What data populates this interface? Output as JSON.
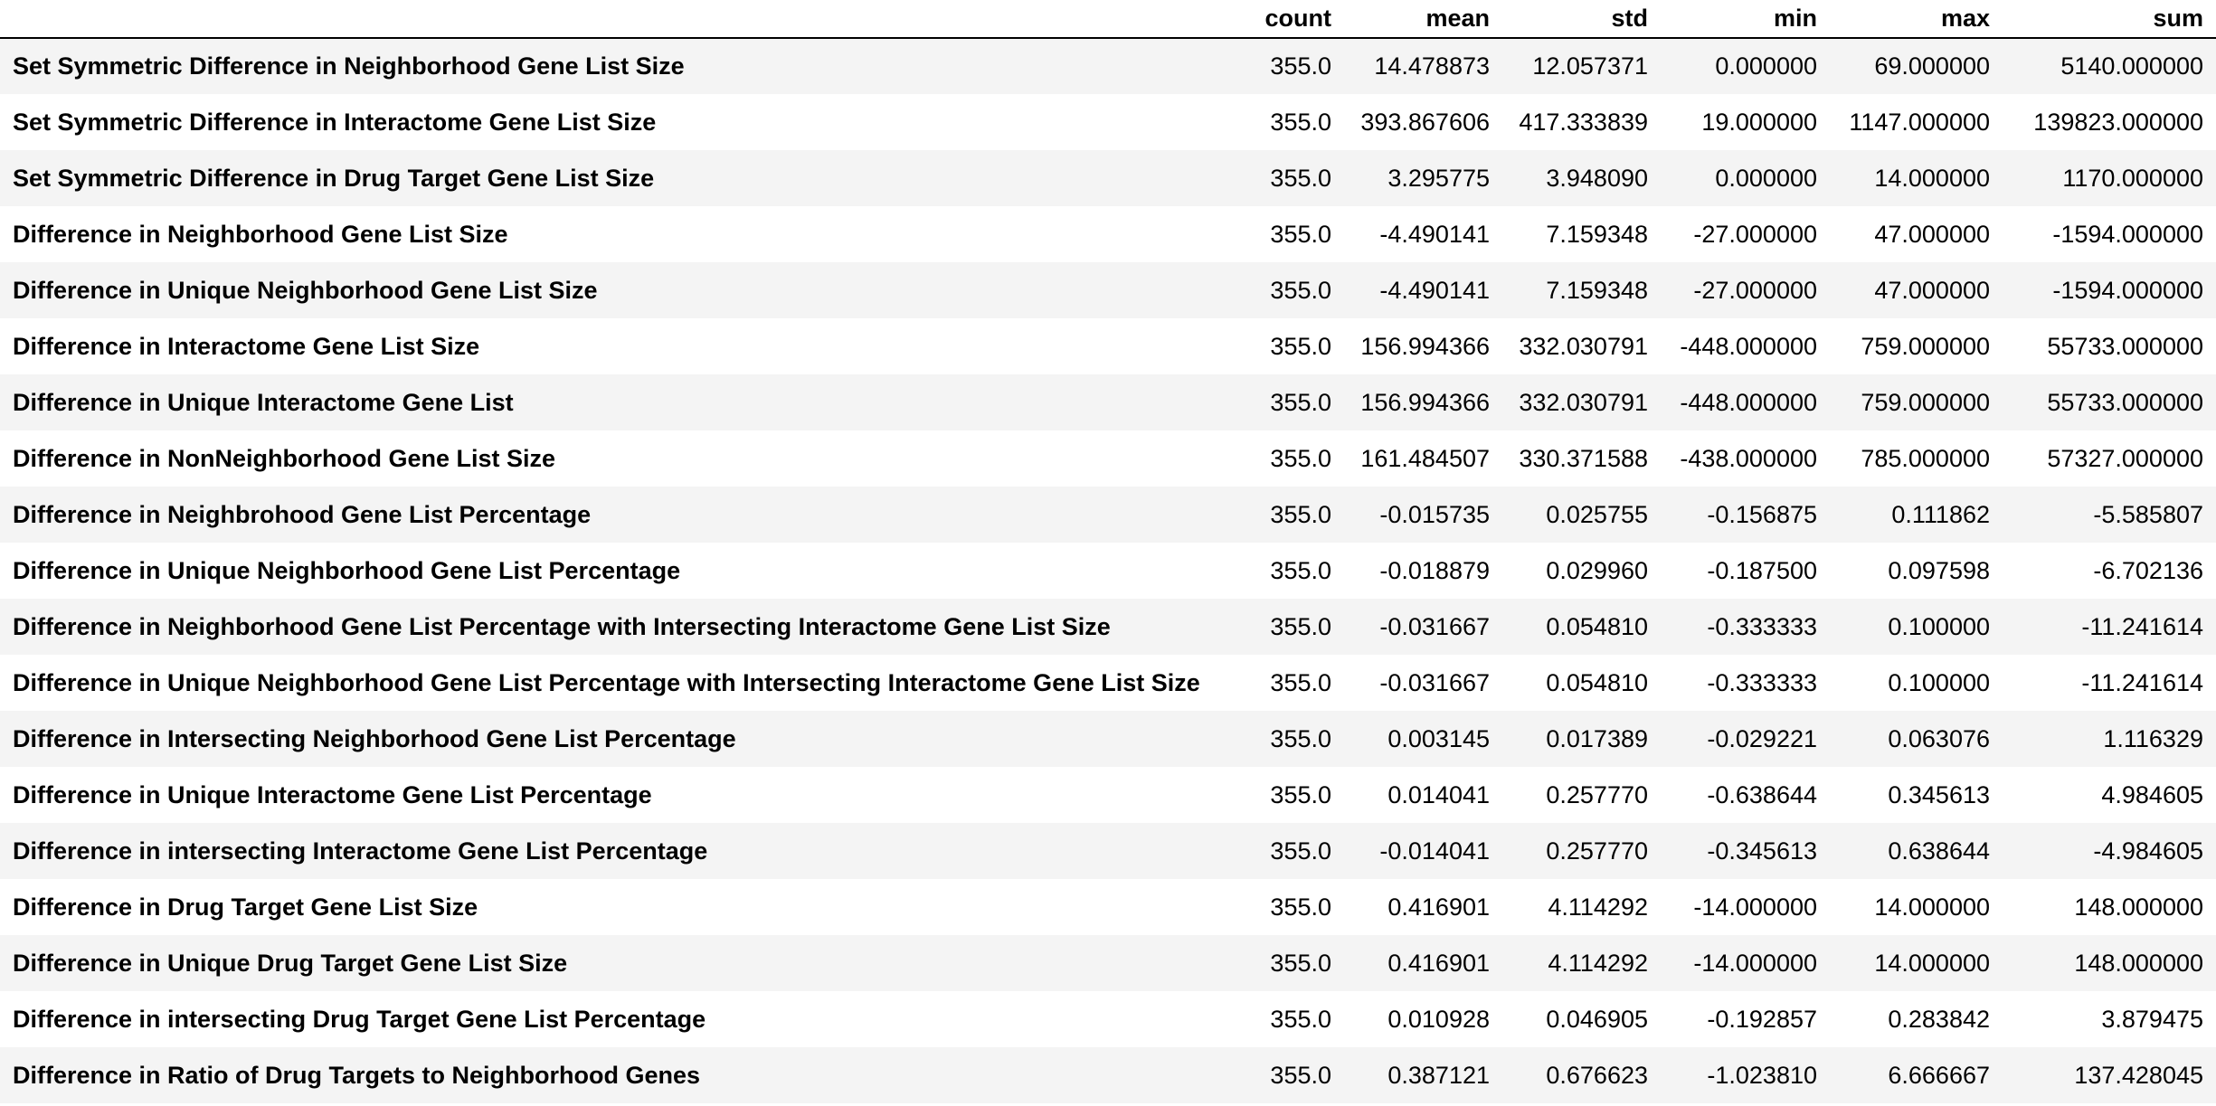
{
  "table": {
    "columns": [
      "",
      "count",
      "mean",
      "std",
      "min",
      "max",
      "sum"
    ],
    "rows": [
      {
        "label": "Set Symmetric Difference in Neighborhood Gene List Size",
        "values": [
          "355.0",
          "14.478873",
          "12.057371",
          "0.000000",
          "69.000000",
          "5140.000000"
        ]
      },
      {
        "label": "Set Symmetric Difference in Interactome Gene List Size",
        "values": [
          "355.0",
          "393.867606",
          "417.333839",
          "19.000000",
          "1147.000000",
          "139823.000000"
        ]
      },
      {
        "label": "Set Symmetric Difference in Drug Target Gene List Size",
        "values": [
          "355.0",
          "3.295775",
          "3.948090",
          "0.000000",
          "14.000000",
          "1170.000000"
        ]
      },
      {
        "label": "Difference in Neighborhood Gene List Size",
        "values": [
          "355.0",
          "-4.490141",
          "7.159348",
          "-27.000000",
          "47.000000",
          "-1594.000000"
        ]
      },
      {
        "label": "Difference in Unique Neighborhood Gene List Size",
        "values": [
          "355.0",
          "-4.490141",
          "7.159348",
          "-27.000000",
          "47.000000",
          "-1594.000000"
        ]
      },
      {
        "label": "Difference in Interactome Gene List Size",
        "values": [
          "355.0",
          "156.994366",
          "332.030791",
          "-448.000000",
          "759.000000",
          "55733.000000"
        ]
      },
      {
        "label": "Difference in Unique Interactome Gene List",
        "values": [
          "355.0",
          "156.994366",
          "332.030791",
          "-448.000000",
          "759.000000",
          "55733.000000"
        ]
      },
      {
        "label": "Difference in NonNeighborhood Gene List Size",
        "values": [
          "355.0",
          "161.484507",
          "330.371588",
          "-438.000000",
          "785.000000",
          "57327.000000"
        ]
      },
      {
        "label": "Difference in Neighbrohood Gene List Percentage",
        "values": [
          "355.0",
          "-0.015735",
          "0.025755",
          "-0.156875",
          "0.111862",
          "-5.585807"
        ]
      },
      {
        "label": "Difference in Unique Neighborhood Gene List Percentage",
        "values": [
          "355.0",
          "-0.018879",
          "0.029960",
          "-0.187500",
          "0.097598",
          "-6.702136"
        ]
      },
      {
        "label": "Difference in Neighborhood Gene List Percentage with Intersecting Interactome Gene List Size",
        "values": [
          "355.0",
          "-0.031667",
          "0.054810",
          "-0.333333",
          "0.100000",
          "-11.241614"
        ]
      },
      {
        "label": "Difference in Unique Neighborhood Gene List Percentage with Intersecting Interactome Gene List Size",
        "values": [
          "355.0",
          "-0.031667",
          "0.054810",
          "-0.333333",
          "0.100000",
          "-11.241614"
        ]
      },
      {
        "label": "Difference in Intersecting Neighborhood Gene List Percentage",
        "values": [
          "355.0",
          "0.003145",
          "0.017389",
          "-0.029221",
          "0.063076",
          "1.116329"
        ]
      },
      {
        "label": "Difference in Unique Interactome Gene List Percentage",
        "values": [
          "355.0",
          "0.014041",
          "0.257770",
          "-0.638644",
          "0.345613",
          "4.984605"
        ]
      },
      {
        "label": "Difference in intersecting Interactome Gene List Percentage",
        "values": [
          "355.0",
          "-0.014041",
          "0.257770",
          "-0.345613",
          "0.638644",
          "-4.984605"
        ]
      },
      {
        "label": "Difference in Drug Target Gene List Size",
        "values": [
          "355.0",
          "0.416901",
          "4.114292",
          "-14.000000",
          "14.000000",
          "148.000000"
        ]
      },
      {
        "label": "Difference in Unique Drug Target Gene List Size",
        "values": [
          "355.0",
          "0.416901",
          "4.114292",
          "-14.000000",
          "14.000000",
          "148.000000"
        ]
      },
      {
        "label": "Difference in intersecting Drug Target Gene List Percentage",
        "values": [
          "355.0",
          "0.010928",
          "0.046905",
          "-0.192857",
          "0.283842",
          "3.879475"
        ]
      },
      {
        "label": "Difference in Ratio of Drug Targets to Neighborhood Genes",
        "values": [
          "355.0",
          "0.387121",
          "0.676623",
          "-1.023810",
          "6.666667",
          "137.428045"
        ]
      }
    ]
  }
}
